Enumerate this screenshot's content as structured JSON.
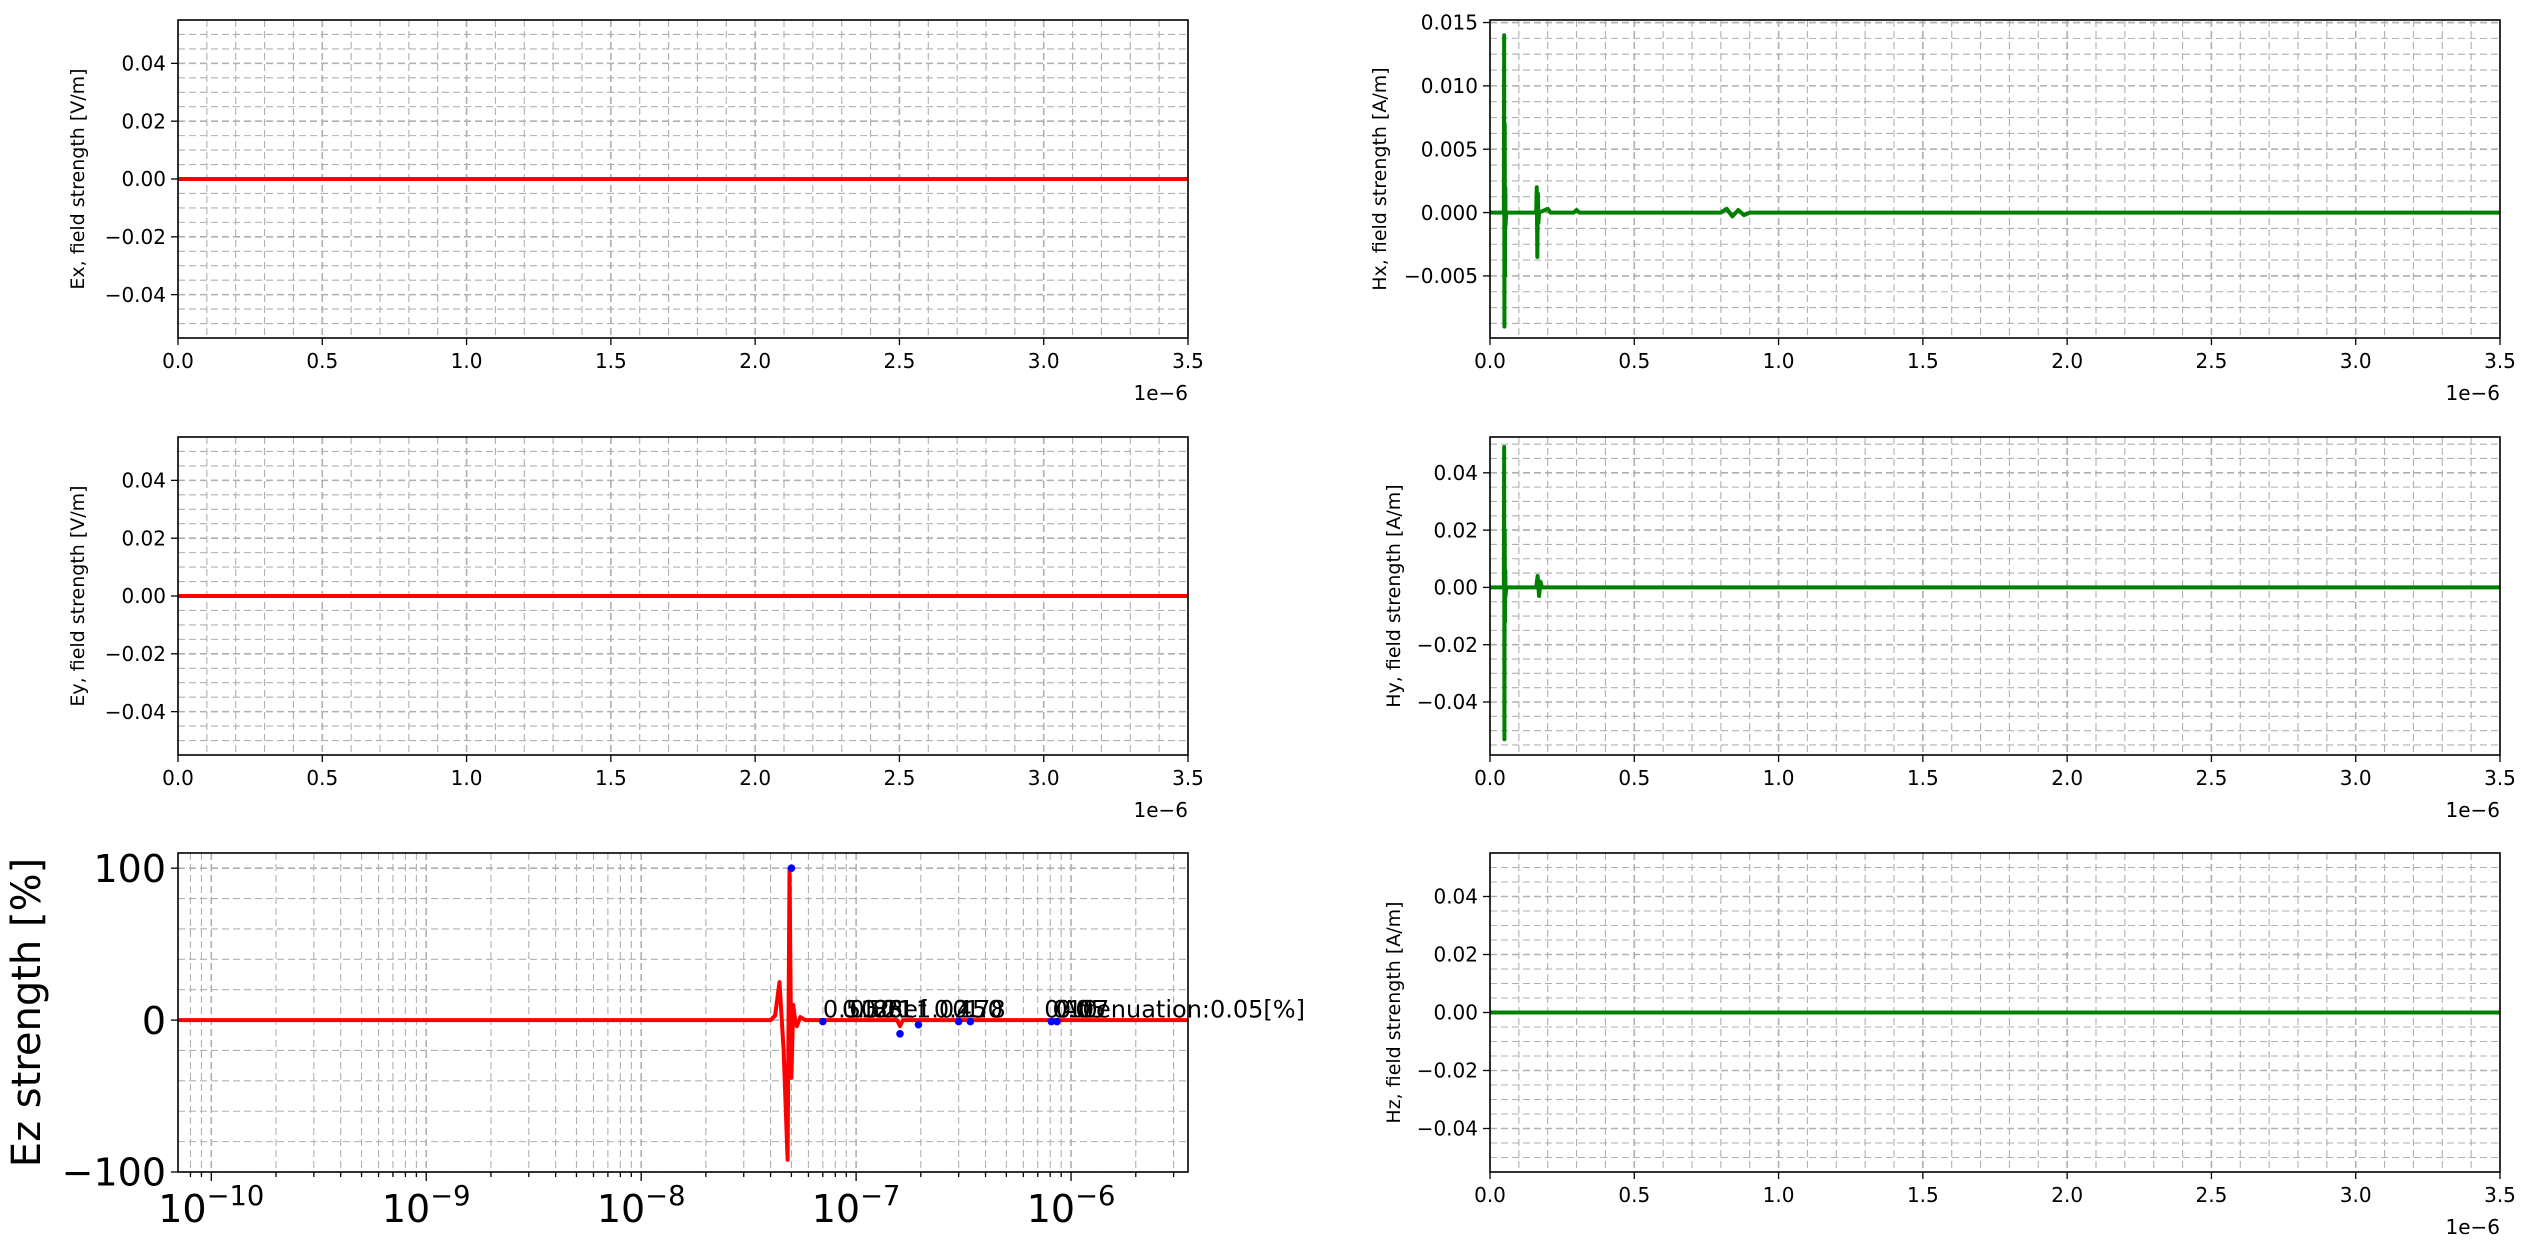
{
  "chart_data": [
    {
      "type": "line",
      "ylabel": "Ex, field strength [V/m]",
      "xlabel": "",
      "xlim": [
        0,
        3.5e-06
      ],
      "ylim": [
        -0.055,
        0.055
      ],
      "x_scale": "linear",
      "x_offset_text": "1e−6",
      "xticks": [
        0,
        5e-07,
        1e-06,
        1.5e-06,
        2e-06,
        2.5e-06,
        3e-06,
        3.5e-06
      ],
      "xtick_labels": [
        "0.0",
        "0.5",
        "1.0",
        "1.5",
        "2.0",
        "2.5",
        "3.0",
        "3.5"
      ],
      "yticks": [
        -0.04,
        -0.02,
        0.0,
        0.02,
        0.04
      ],
      "ytick_labels": [
        "−0.04",
        "−0.02",
        "0.00",
        "0.02",
        "0.04"
      ],
      "grid": true,
      "minor_grid": true,
      "color": "#ff0000",
      "series": [
        {
          "x": [
            0,
            3.5e-06
          ],
          "y": [
            0,
            0
          ]
        }
      ]
    },
    {
      "type": "line",
      "ylabel": "Hx, field strength [A/m]",
      "xlabel": "",
      "xlim": [
        0,
        3.5e-06
      ],
      "ylim": [
        -0.0099,
        0.0152
      ],
      "x_scale": "linear",
      "x_offset_text": "1e−6",
      "xticks": [
        0,
        5e-07,
        1e-06,
        1.5e-06,
        2e-06,
        2.5e-06,
        3e-06,
        3.5e-06
      ],
      "xtick_labels": [
        "0.0",
        "0.5",
        "1.0",
        "1.5",
        "2.0",
        "2.5",
        "3.0",
        "3.5"
      ],
      "yticks": [
        -0.005,
        0.0,
        0.005,
        0.01,
        0.015
      ],
      "ytick_labels": [
        "−0.005",
        "0.000",
        "0.005",
        "0.010",
        "0.015"
      ],
      "grid": true,
      "minor_grid": true,
      "color": "#008000",
      "series": [
        {
          "x": [
            0,
            4.8e-08,
            4.9e-08,
            5e-08,
            5.1e-08,
            5.2e-08,
            5.3e-08,
            5.4e-08,
            5.6e-08,
            8e-08,
            1e-07,
            1.2e-07,
            1.6e-07,
            1.62e-07,
            1.64e-07,
            1.66e-07,
            1.68e-07,
            1.7e-07,
            2e-07,
            2.1e-07,
            2.5e-07,
            2.9e-07,
            3e-07,
            3.1e-07,
            3.5e-07,
            8e-07,
            8.2e-07,
            8.4e-07,
            8.6e-07,
            8.8e-07,
            9e-07,
            1e-06,
            3.5e-06
          ],
          "y": [
            0,
            0,
            0.014,
            -0.009,
            0.007,
            -0.005,
            0.002,
            -0.001,
            0,
            0,
            0,
            0,
            0,
            0.002,
            -0.0035,
            0.0015,
            -0.0008,
            0,
            0.0003,
            0,
            0,
            0,
            0.0002,
            0,
            0,
            0,
            0.0003,
            -0.0003,
            0.0002,
            -0.0002,
            0,
            0,
            0
          ]
        }
      ]
    },
    {
      "type": "line",
      "ylabel": "Ey, field strength [V/m]",
      "xlabel": "",
      "xlim": [
        0,
        3.5e-06
      ],
      "ylim": [
        -0.055,
        0.055
      ],
      "x_scale": "linear",
      "x_offset_text": "1e−6",
      "xticks": [
        0,
        5e-07,
        1e-06,
        1.5e-06,
        2e-06,
        2.5e-06,
        3e-06,
        3.5e-06
      ],
      "xtick_labels": [
        "0.0",
        "0.5",
        "1.0",
        "1.5",
        "2.0",
        "2.5",
        "3.0",
        "3.5"
      ],
      "yticks": [
        -0.04,
        -0.02,
        0.0,
        0.02,
        0.04
      ],
      "ytick_labels": [
        "−0.04",
        "−0.02",
        "0.00",
        "0.02",
        "0.04"
      ],
      "grid": true,
      "minor_grid": true,
      "color": "#ff0000",
      "series": [
        {
          "x": [
            0,
            3.5e-06
          ],
          "y": [
            0,
            0
          ]
        }
      ]
    },
    {
      "type": "line",
      "ylabel": "Hy, field strength [A/m]",
      "xlabel": "",
      "xlim": [
        0,
        3.5e-06
      ],
      "ylim": [
        -0.0585,
        0.0525
      ],
      "x_scale": "linear",
      "x_offset_text": "1e−6",
      "xticks": [
        0,
        5e-07,
        1e-06,
        1.5e-06,
        2e-06,
        2.5e-06,
        3e-06,
        3.5e-06
      ],
      "xtick_labels": [
        "0.0",
        "0.5",
        "1.0",
        "1.5",
        "2.0",
        "2.5",
        "3.0",
        "3.5"
      ],
      "yticks": [
        -0.04,
        -0.02,
        0.0,
        0.02,
        0.04
      ],
      "ytick_labels": [
        "−0.04",
        "−0.02",
        "0.00",
        "0.02",
        "0.04"
      ],
      "grid": true,
      "minor_grid": true,
      "color": "#008000",
      "series": [
        {
          "x": [
            0,
            4.8e-08,
            4.9e-08,
            5e-08,
            5.1e-08,
            5.2e-08,
            5.3e-08,
            5.4e-08,
            5.6e-08,
            1.6e-07,
            1.65e-07,
            1.7e-07,
            1.75e-07,
            1.8e-07,
            3.5e-06
          ],
          "y": [
            0,
            0,
            0.049,
            -0.053,
            0.02,
            -0.012,
            0.006,
            -0.003,
            0,
            0,
            0.004,
            -0.003,
            0.002,
            0,
            0
          ]
        }
      ]
    },
    {
      "type": "line",
      "ylabel": "Ez strength [%]",
      "xlabel": "",
      "xlim": [
        7e-11,
        3.5e-06
      ],
      "ylim": [
        -100,
        110
      ],
      "x_scale": "log",
      "xticks": [
        1e-10,
        1e-09,
        1e-08,
        1e-07,
        1e-06
      ],
      "xtick_labels": [
        "10^−10",
        "10^−9",
        "10^−8",
        "10^−7",
        "10^−6"
      ],
      "yticks": [
        -100,
        0,
        100
      ],
      "ytick_labels": [
        "−100",
        "0",
        "100"
      ],
      "grid": true,
      "minor_grid": true,
      "color": "#ff0000",
      "series": [
        {
          "x": [
            7e-11,
            4e-08,
            4.2e-08,
            4.4e-08,
            4.6e-08,
            4.8e-08,
            4.9e-08,
            5e-08,
            5.1e-08,
            5.2e-08,
            5.3e-08,
            5.5e-08,
            5.8e-08,
            1.55e-07,
            1.6e-07,
            1.65e-07,
            3.5e-06
          ],
          "y": [
            0,
            0,
            3,
            25,
            -20,
            -92,
            100,
            -38,
            10,
            0,
            -4,
            2,
            0,
            0,
            -4,
            0,
            0
          ]
        }
      ],
      "markers": {
        "color": "#0000ff",
        "x": [
          5e-08,
          7e-08,
          1.6e-07,
          1.95e-07,
          3e-07,
          3.4e-07,
          8.1e-07,
          8.6e-07
        ],
        "y": [
          100,
          -1,
          -9,
          -3,
          -1,
          -1,
          -1,
          -1
        ]
      },
      "annotations": [
        {
          "x": 7e-08,
          "y": 0.5,
          "text": "0.50"
        },
        {
          "x": 8.6e-08,
          "y": 0.5,
          "text": "0.50"
        },
        {
          "x": 9.3e-08,
          "y": 0.5,
          "text": "0.86"
        },
        {
          "x": 1.05e-07,
          "y": 0.5,
          "text": "1.21"
        },
        {
          "x": 1.22e-07,
          "y": 0.5,
          "text": "2.1"
        },
        {
          "x": 1.4e-07,
          "y": 0.5,
          "text": "Ref"
        },
        {
          "x": 1.9e-07,
          "y": 0.5,
          "text": "1.02"
        },
        {
          "x": 2.3e-07,
          "y": 0.5,
          "text": "0.45"
        },
        {
          "x": 2.8e-07,
          "y": 0.5,
          "text": "0.78"
        },
        {
          "x": 3.2e-07,
          "y": 0.5,
          "text": "1.0"
        },
        {
          "x": 7.5e-07,
          "y": 0.5,
          "text": "0.10"
        },
        {
          "x": 8.2e-07,
          "y": 0.5,
          "text": "0.05"
        },
        {
          "x": 8.5e-07,
          "y": 0.5,
          "text": "0.07"
        },
        {
          "x": 9e-07,
          "y": 0.5,
          "text": "Attenuation:0.05[%]"
        }
      ]
    },
    {
      "type": "line",
      "ylabel": "Hz, field strength [A/m]",
      "xlabel": "",
      "xlim": [
        0,
        3.5e-06
      ],
      "ylim": [
        -0.055,
        0.055
      ],
      "x_scale": "linear",
      "x_offset_text": "1e−6",
      "xticks": [
        0,
        5e-07,
        1e-06,
        1.5e-06,
        2e-06,
        2.5e-06,
        3e-06,
        3.5e-06
      ],
      "xtick_labels": [
        "0.0",
        "0.5",
        "1.0",
        "1.5",
        "2.0",
        "2.5",
        "3.0",
        "3.5"
      ],
      "yticks": [
        -0.04,
        -0.02,
        0.0,
        0.02,
        0.04
      ],
      "ytick_labels": [
        "−0.04",
        "−0.02",
        "0.00",
        "0.02",
        "0.04"
      ],
      "grid": true,
      "minor_grid": true,
      "color": "#008000",
      "series": [
        {
          "x": [
            0,
            3.5e-06
          ],
          "y": [
            0,
            0
          ]
        }
      ]
    }
  ]
}
